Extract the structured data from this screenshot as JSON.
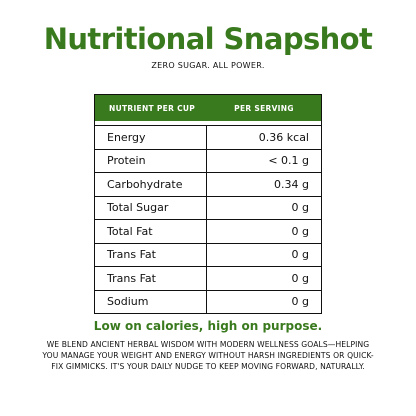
{
  "title": "Nutritional Snapshot",
  "subtitle": "ZERO SUGAR. ALL POWER.",
  "table": {
    "header": {
      "nutrient": "NUTRIENT PER CUP",
      "serving": "PER SERVING"
    },
    "rows": [
      {
        "nutrient": "Energy",
        "value": "0.36 kcal"
      },
      {
        "nutrient": "Protein",
        "value": "< 0.1 g"
      },
      {
        "nutrient": "Carbohydrate",
        "value": "0.34 g"
      },
      {
        "nutrient": "Total Sugar",
        "value": "0 g"
      },
      {
        "nutrient": "Total Fat",
        "value": "0 g"
      },
      {
        "nutrient": "Trans Fat",
        "value": "0 g"
      },
      {
        "nutrient": "Trans Fat",
        "value": "0 g"
      },
      {
        "nutrient": "Sodium",
        "value": "0 g"
      }
    ]
  },
  "tagline": "Low on calories, high on purpose.",
  "body": "WE BLEND ANCIENT HERBAL WISDOM WITH MODERN WELLNESS GOALS—HELPING YOU MANAGE YOUR WEIGHT AND ENERGY WITHOUT HARSH INGREDIENTS OR QUICK-FIX GIMMICKS. IT'S YOUR DAILY NUDGE TO KEEP MOVING FORWARD, NATURALLY.",
  "colors": {
    "brand_green": "#3a7a1e",
    "text": "#111111",
    "background": "#ffffff"
  }
}
